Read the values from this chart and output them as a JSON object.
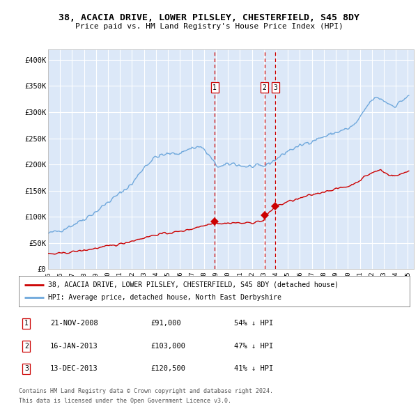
{
  "title": "38, ACACIA DRIVE, LOWER PILSLEY, CHESTERFIELD, S45 8DY",
  "subtitle": "Price paid vs. HM Land Registry's House Price Index (HPI)",
  "background_color": "#dce8f8",
  "plot_bg_color": "#dce8f8",
  "ylim": [
    0,
    420000
  ],
  "yticks": [
    0,
    50000,
    100000,
    150000,
    200000,
    250000,
    300000,
    350000,
    400000
  ],
  "ytick_labels": [
    "£0",
    "£50K",
    "£100K",
    "£150K",
    "£200K",
    "£250K",
    "£300K",
    "£350K",
    "£400K"
  ],
  "xlim_start": 1995.0,
  "xlim_end": 2025.5,
  "sale_dates": [
    2008.896,
    2013.046,
    2013.958
  ],
  "sale_prices": [
    91000,
    103000,
    120500
  ],
  "legend_property": "38, ACACIA DRIVE, LOWER PILSLEY, CHESTERFIELD, S45 8DY (detached house)",
  "legend_hpi": "HPI: Average price, detached house, North East Derbyshire",
  "table_rows": [
    {
      "num": "1",
      "date": "21-NOV-2008",
      "price": "£91,000",
      "hpi": "54% ↓ HPI"
    },
    {
      "num": "2",
      "date": "16-JAN-2013",
      "price": "£103,000",
      "hpi": "47% ↓ HPI"
    },
    {
      "num": "3",
      "date": "13-DEC-2013",
      "price": "£120,500",
      "hpi": "41% ↓ HPI"
    }
  ],
  "footer1": "Contains HM Land Registry data © Crown copyright and database right 2024.",
  "footer2": "This data is licensed under the Open Government Licence v3.0.",
  "hpi_color": "#6fa8dc",
  "property_color": "#cc0000",
  "dashed_line_color": "#cc0000"
}
